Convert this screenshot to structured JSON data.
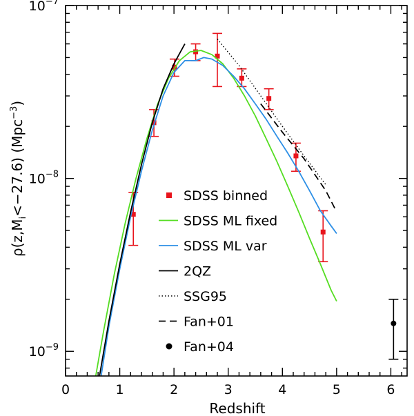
{
  "chart_data": {
    "type": "scatter",
    "xlabel": "Redshift",
    "ylabel": "ρ(z,M_i<−27.6)  (Mpc⁻³)",
    "ylabel_parts": {
      "rho": "ρ(z,M",
      "sub": "i",
      "mid": "<−27.6)  (Mpc",
      "sup": "−3",
      "end": ")"
    },
    "xlim": [
      0,
      6.3
    ],
    "ylim": [
      7.2e-10,
      1e-07
    ],
    "yscale": "log",
    "x_ticks": [
      {
        "value": 0,
        "label": "0"
      },
      {
        "value": 1,
        "label": "1"
      },
      {
        "value": 2,
        "label": "2"
      },
      {
        "value": 3,
        "label": "3"
      },
      {
        "value": 4,
        "label": "4"
      },
      {
        "value": 5,
        "label": "5"
      },
      {
        "value": 6,
        "label": "6"
      }
    ],
    "y_ticks": [
      {
        "value": 1e-09,
        "base": "10",
        "exp": "−9"
      },
      {
        "value": 1e-08,
        "base": "10",
        "exp": "−8"
      },
      {
        "value": 1e-07,
        "base": "10",
        "exp": "−7"
      }
    ],
    "legend_position": "bottom-center",
    "series": [
      {
        "name": "SDSS binned",
        "kind": "points_with_errors",
        "color": "#e8141c",
        "marker": "square",
        "points": [
          {
            "x": 1.25,
            "y": 6.2e-09,
            "lo": 4.1e-09,
            "hi": 8.3e-09
          },
          {
            "x": 1.63,
            "y": 2.1e-08,
            "lo": 1.75e-08,
            "hi": 2.5e-08
          },
          {
            "x": 2.01,
            "y": 4.4e-08,
            "lo": 3.9e-08,
            "hi": 4.9e-08
          },
          {
            "x": 2.4,
            "y": 5.4e-08,
            "lo": 4.8e-08,
            "hi": 6e-08
          },
          {
            "x": 2.8,
            "y": 5.1e-08,
            "lo": 3.4e-08,
            "hi": 6.9e-08
          },
          {
            "x": 3.25,
            "y": 3.8e-08,
            "lo": 3.4e-08,
            "hi": 4.3e-08
          },
          {
            "x": 3.75,
            "y": 2.9e-08,
            "lo": 2.5e-08,
            "hi": 3.3e-08
          },
          {
            "x": 4.25,
            "y": 1.35e-08,
            "lo": 1.1e-08,
            "hi": 1.6e-08
          },
          {
            "x": 4.75,
            "y": 4.9e-09,
            "lo": 3.3e-09,
            "hi": 6.5e-09
          }
        ]
      },
      {
        "name": "SDSS ML fixed",
        "kind": "line",
        "color": "#55dd22",
        "dash": "",
        "points": [
          [
            0.55,
            7e-10
          ],
          [
            0.7,
            1.3e-09
          ],
          [
            0.9,
            2.8e-09
          ],
          [
            1.1,
            5.5e-09
          ],
          [
            1.3,
            1e-08
          ],
          [
            1.5,
            1.7e-08
          ],
          [
            1.7,
            2.7e-08
          ],
          [
            1.9,
            3.8e-08
          ],
          [
            2.1,
            4.8e-08
          ],
          [
            2.3,
            5.4e-08
          ],
          [
            2.5,
            5.5e-08
          ],
          [
            2.7,
            5.2e-08
          ],
          [
            2.9,
            4.6e-08
          ],
          [
            3.1,
            3.8e-08
          ],
          [
            3.3,
            3e-08
          ],
          [
            3.5,
            2.3e-08
          ],
          [
            3.7,
            1.7e-08
          ],
          [
            3.9,
            1.25e-08
          ],
          [
            4.1,
            9e-09
          ],
          [
            4.3,
            6.4e-09
          ],
          [
            4.5,
            4.5e-09
          ],
          [
            4.7,
            3.2e-09
          ],
          [
            4.9,
            2.25e-09
          ],
          [
            5.0,
            1.95e-09
          ]
        ]
      },
      {
        "name": "SDSS ML var",
        "kind": "line",
        "color": "#2d8fe6",
        "dash": "",
        "points": [
          [
            0.65,
            7e-10
          ],
          [
            0.8,
            1.4e-09
          ],
          [
            1.0,
            3e-09
          ],
          [
            1.2,
            6e-09
          ],
          [
            1.4,
            1.1e-08
          ],
          [
            1.6,
            1.9e-08
          ],
          [
            1.8,
            3e-08
          ],
          [
            2.0,
            4.1e-08
          ],
          [
            2.2,
            4.8e-08
          ],
          [
            2.4,
            4.8e-08
          ],
          [
            2.55,
            5e-08
          ],
          [
            2.7,
            4.9e-08
          ],
          [
            2.9,
            4.5e-08
          ],
          [
            3.1,
            3.9e-08
          ],
          [
            3.3,
            3.3e-08
          ],
          [
            3.5,
            2.7e-08
          ],
          [
            3.7,
            2.2e-08
          ],
          [
            3.9,
            1.75e-08
          ],
          [
            4.1,
            1.4e-08
          ],
          [
            4.3,
            1.1e-08
          ],
          [
            4.5,
            8.5e-09
          ],
          [
            4.7,
            6.5e-09
          ],
          [
            4.9,
            5.3e-09
          ],
          [
            5.0,
            4.8e-09
          ]
        ]
      },
      {
        "name": "2QZ",
        "kind": "line",
        "color": "#000000",
        "dash": "",
        "points": [
          [
            0.62,
            7e-10
          ],
          [
            0.8,
            1.5e-09
          ],
          [
            1.0,
            3.2e-09
          ],
          [
            1.2,
            6.4e-09
          ],
          [
            1.4,
            1.2e-08
          ],
          [
            1.6,
            2.1e-08
          ],
          [
            1.8,
            3.3e-08
          ],
          [
            2.0,
            4.6e-08
          ],
          [
            2.2,
            6e-08
          ]
        ]
      },
      {
        "name": "SSG95",
        "kind": "line",
        "color": "#000000",
        "dash": "1.5 3",
        "points": [
          [
            2.8,
            6.4e-08
          ],
          [
            3.2,
            4.5e-08
          ],
          [
            3.6,
            3e-08
          ],
          [
            4.0,
            2e-08
          ],
          [
            4.4,
            1.35e-08
          ],
          [
            4.8,
            9.2e-09
          ]
        ]
      },
      {
        "name": "Fan+01",
        "kind": "line",
        "color": "#000000",
        "dash": "10 6",
        "points": [
          [
            3.6,
            2.7e-08
          ],
          [
            4.0,
            1.85e-08
          ],
          [
            4.4,
            1.3e-08
          ],
          [
            4.8,
            8.5e-09
          ],
          [
            5.0,
            6.4e-09
          ]
        ]
      },
      {
        "name": "Fan+04",
        "kind": "points_with_errors",
        "color": "#000000",
        "marker": "circle",
        "points": [
          {
            "x": 6.05,
            "y": 1.45e-09,
            "lo": 9e-10,
            "hi": 2e-09
          }
        ]
      }
    ]
  }
}
